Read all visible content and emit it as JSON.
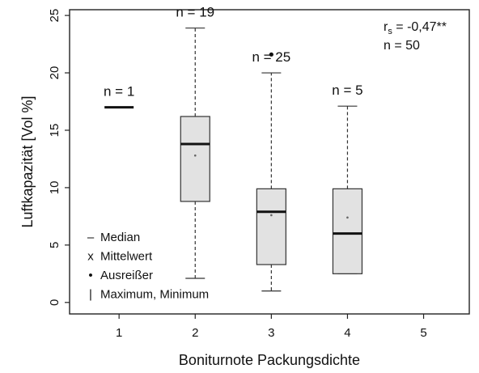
{
  "chart_data": {
    "type": "boxplot",
    "xlabel": "Boniturnote Packungsdichte",
    "ylabel": "Luftkapazität [Vol %]",
    "xlim": [
      0.35,
      5.6
    ],
    "ylim": [
      -1.0,
      25.5
    ],
    "x_ticks": [
      1,
      2,
      3,
      4,
      5
    ],
    "y_ticks": [
      0,
      5,
      10,
      15,
      20,
      25
    ],
    "grid": false,
    "legend_position": "bottom-left",
    "groups": [
      {
        "x": 1,
        "n_label": "n = 1",
        "min": 17.0,
        "q1": 17.0,
        "median": 17.0,
        "q3": 17.0,
        "max": 17.0,
        "mean": 17.0,
        "outliers": []
      },
      {
        "x": 2,
        "n_label": "n = 19",
        "min": 2.1,
        "q1": 8.8,
        "median": 13.8,
        "q3": 16.2,
        "max": 23.9,
        "mean": 12.8,
        "outliers": []
      },
      {
        "x": 3,
        "n_label": "n = 25",
        "min": 1.0,
        "q1": 3.3,
        "median": 7.9,
        "q3": 9.9,
        "max": 20.0,
        "mean": 7.6,
        "outliers": [
          21.6
        ]
      },
      {
        "x": 4,
        "n_label": "n = 5",
        "min": 2.5,
        "q1": 2.5,
        "median": 6.0,
        "q3": 9.9,
        "max": 17.1,
        "mean": 7.4,
        "outliers": []
      }
    ],
    "annotations": {
      "rs_symbol": "r",
      "rs_subscript": "s",
      "rs_value": " = -0,47**",
      "n_total": "n = 50"
    },
    "legend": [
      {
        "symbol": "–",
        "label": "Median"
      },
      {
        "symbol": "x",
        "label": "Mittelwert"
      },
      {
        "symbol": "•",
        "label": "Ausreißer"
      },
      {
        "symbol": "|",
        "label": "Maximum, Minimum"
      }
    ]
  }
}
